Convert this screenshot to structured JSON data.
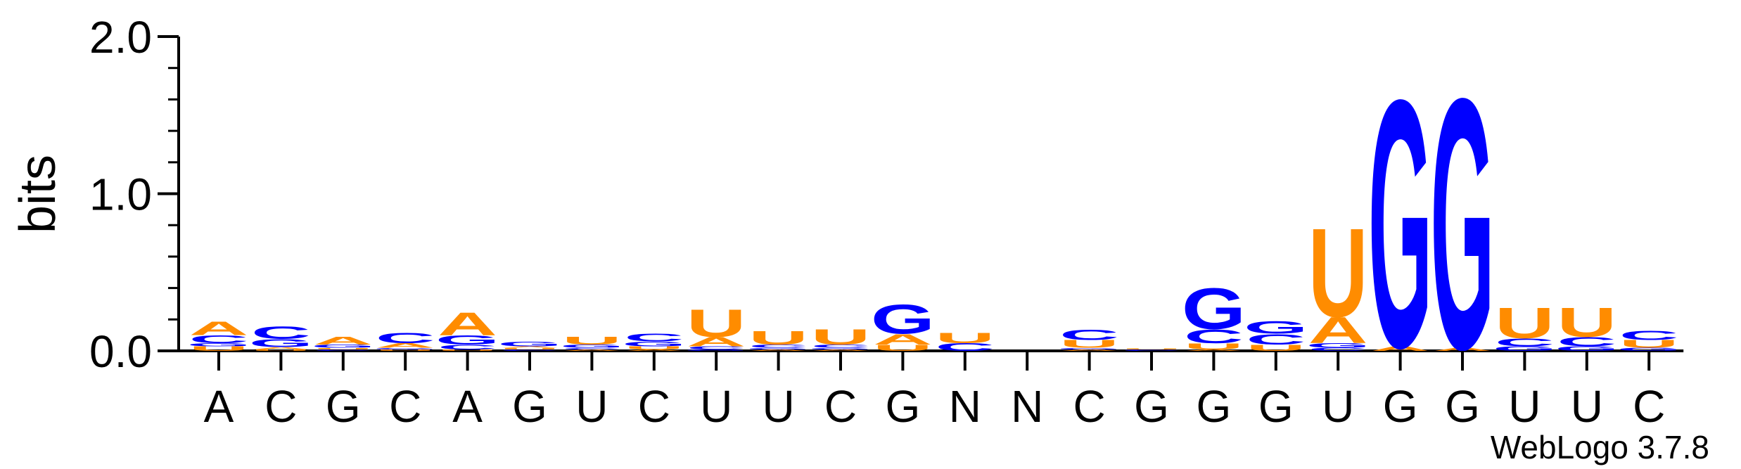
{
  "chart_data": {
    "type": "sequence-logo",
    "title": "",
    "xlabel": "",
    "ylabel": "bits",
    "ylim": [
      0,
      2
    ],
    "y_ticks": [
      "0.0",
      "1.0",
      "2.0"
    ],
    "credit": "WebLogo 3.7.8",
    "colors": {
      "A": "#ff8c00",
      "U": "#ff8c00",
      "G": "#0000ff",
      "C": "#0000ff"
    },
    "positions": [
      {
        "label": "A",
        "letters": [
          {
            "base": "U",
            "height": 0.03
          },
          {
            "base": "G",
            "height": 0.02
          },
          {
            "base": "C",
            "height": 0.05
          },
          {
            "base": "A",
            "height": 0.09
          }
        ]
      },
      {
        "label": "C",
        "letters": [
          {
            "base": "U",
            "height": 0.01
          },
          {
            "base": "A",
            "height": 0.015
          },
          {
            "base": "G",
            "height": 0.05
          },
          {
            "base": "C",
            "height": 0.08
          }
        ]
      },
      {
        "label": "G",
        "letters": [
          {
            "base": "C",
            "height": 0.01
          },
          {
            "base": "U",
            "height": 0.01
          },
          {
            "base": "G",
            "height": 0.02
          },
          {
            "base": "A",
            "height": 0.05
          }
        ]
      },
      {
        "label": "C",
        "letters": [
          {
            "base": "U",
            "height": 0.01
          },
          {
            "base": "G",
            "height": 0.01
          },
          {
            "base": "A",
            "height": 0.03
          },
          {
            "base": "C",
            "height": 0.07
          }
        ]
      },
      {
        "label": "A",
        "letters": [
          {
            "base": "U",
            "height": 0.01
          },
          {
            "base": "C",
            "height": 0.03
          },
          {
            "base": "G",
            "height": 0.06
          },
          {
            "base": "A",
            "height": 0.15
          }
        ]
      },
      {
        "label": "G",
        "letters": [
          {
            "base": "C",
            "height": 0.01
          },
          {
            "base": "U",
            "height": 0.01
          },
          {
            "base": "A",
            "height": 0.01
          },
          {
            "base": "G",
            "height": 0.03
          }
        ]
      },
      {
        "label": "U",
        "letters": [
          {
            "base": "A",
            "height": 0.01
          },
          {
            "base": "C",
            "height": 0.01
          },
          {
            "base": "G",
            "height": 0.02
          },
          {
            "base": "U",
            "height": 0.05
          }
        ]
      },
      {
        "label": "C",
        "letters": [
          {
            "base": "A",
            "height": 0.01
          },
          {
            "base": "U",
            "height": 0.02
          },
          {
            "base": "G",
            "height": 0.03
          },
          {
            "base": "C",
            "height": 0.05
          }
        ]
      },
      {
        "label": "U",
        "letters": [
          {
            "base": "G",
            "height": 0.01
          },
          {
            "base": "C",
            "height": 0.02
          },
          {
            "base": "A",
            "height": 0.06
          },
          {
            "base": "U",
            "height": 0.18
          }
        ]
      },
      {
        "label": "U",
        "letters": [
          {
            "base": "A",
            "height": 0.01
          },
          {
            "base": "G",
            "height": 0.01
          },
          {
            "base": "C",
            "height": 0.02
          },
          {
            "base": "U",
            "height": 0.09
          }
        ]
      },
      {
        "label": "C",
        "letters": [
          {
            "base": "A",
            "height": 0.01
          },
          {
            "base": "G",
            "height": 0.01
          },
          {
            "base": "C",
            "height": 0.02
          },
          {
            "base": "U",
            "height": 0.1
          }
        ]
      },
      {
        "label": "G",
        "letters": [
          {
            "base": "U",
            "height": 0.04
          },
          {
            "base": "A",
            "height": 0.07
          },
          {
            "base": "G",
            "height": 0.19
          }
        ]
      },
      {
        "label": "N",
        "letters": [
          {
            "base": "C",
            "height": 0.05
          },
          {
            "base": "U",
            "height": 0.07
          }
        ]
      },
      {
        "label": "N",
        "letters": []
      },
      {
        "label": "C",
        "letters": [
          {
            "base": "A",
            "height": 0.01
          },
          {
            "base": "G",
            "height": 0.01
          },
          {
            "base": "U",
            "height": 0.05
          },
          {
            "base": "C",
            "height": 0.07
          }
        ]
      },
      {
        "label": "G",
        "letters": [
          {
            "base": "C",
            "height": 0.01
          },
          {
            "base": "U",
            "height": 0.005
          }
        ]
      },
      {
        "label": "G",
        "letters": [
          {
            "base": "A",
            "height": 0.01
          },
          {
            "base": "U",
            "height": 0.04
          },
          {
            "base": "C",
            "height": 0.09
          },
          {
            "base": "G",
            "height": 0.27
          }
        ]
      },
      {
        "label": "G",
        "letters": [
          {
            "base": "U",
            "height": 0.04
          },
          {
            "base": "C",
            "height": 0.07
          },
          {
            "base": "G",
            "height": 0.08
          }
        ]
      },
      {
        "label": "U",
        "letters": [
          {
            "base": "C",
            "height": 0.02
          },
          {
            "base": "G",
            "height": 0.03
          },
          {
            "base": "A",
            "height": 0.17
          },
          {
            "base": "U",
            "height": 0.58
          }
        ]
      },
      {
        "label": "G",
        "letters": [
          {
            "base": "A",
            "height": 0.03
          },
          {
            "base": "G",
            "height": 1.62
          }
        ]
      },
      {
        "label": "G",
        "letters": [
          {
            "base": "A",
            "height": 0.02
          },
          {
            "base": "G",
            "height": 1.64
          }
        ]
      },
      {
        "label": "U",
        "letters": [
          {
            "base": "G",
            "height": 0.03
          },
          {
            "base": "C",
            "height": 0.05
          },
          {
            "base": "U",
            "height": 0.2
          }
        ]
      },
      {
        "label": "U",
        "letters": [
          {
            "base": "G",
            "height": 0.03
          },
          {
            "base": "C",
            "height": 0.06
          },
          {
            "base": "U",
            "height": 0.19
          }
        ]
      },
      {
        "label": "C",
        "letters": [
          {
            "base": "G",
            "height": 0.02
          },
          {
            "base": "U",
            "height": 0.05
          },
          {
            "base": "C",
            "height": 0.06
          }
        ]
      }
    ]
  }
}
